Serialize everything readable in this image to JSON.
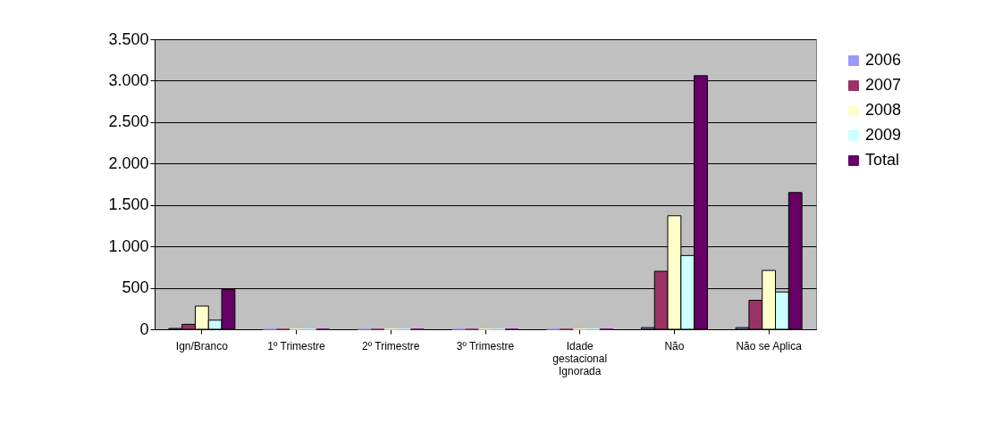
{
  "chart_data": {
    "type": "bar",
    "categories": [
      "Ign/Branco",
      "1º Trimestre",
      "2º Trimestre",
      "3º Trimestre",
      "Idade gestacional Ignorada",
      "Não",
      "Não se Aplica"
    ],
    "series": [
      {
        "name": "2006",
        "color": "#9999ff",
        "values": [
          10,
          0,
          0,
          0,
          0,
          20,
          20
        ]
      },
      {
        "name": "2007",
        "color": "#993366",
        "values": [
          60,
          0,
          0,
          0,
          0,
          700,
          350
        ]
      },
      {
        "name": "2008",
        "color": "#ffffcc",
        "values": [
          280,
          0,
          0,
          0,
          0,
          1370,
          710
        ]
      },
      {
        "name": "2009",
        "color": "#ccffff",
        "values": [
          110,
          0,
          0,
          0,
          0,
          890,
          450
        ]
      },
      {
        "name": "Total",
        "color": "#660066",
        "values": [
          480,
          0,
          0,
          0,
          0,
          3060,
          1650
        ]
      }
    ],
    "ylim": [
      0,
      3500
    ],
    "yticks": [
      0,
      {
        "value": 500,
        "label": "500"
      },
      {
        "value": 1000,
        "label": "1.000"
      },
      {
        "value": 1500,
        "label": "1.500"
      },
      {
        "value": 2000,
        "label": "2.000"
      },
      {
        "value": 2500,
        "label": "2.500"
      },
      {
        "value": 3000,
        "label": "3.000"
      },
      {
        "value": 3500,
        "label": "3.500"
      }
    ],
    "grid": "y",
    "legend": "right"
  }
}
